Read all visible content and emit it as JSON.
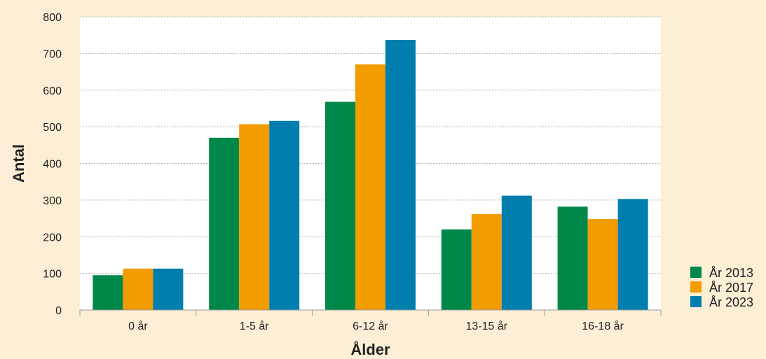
{
  "chart_data": {
    "type": "bar",
    "title": "",
    "xlabel": "Ålder",
    "ylabel": "Antal",
    "categories": [
      "0 år",
      "1-5 år",
      "6-12 år",
      "13-15 år",
      "16-18 år"
    ],
    "series": [
      {
        "name": "År 2013",
        "color": "#00874a",
        "values": [
          95,
          470,
          568,
          220,
          282
        ]
      },
      {
        "name": "År 2017",
        "color": "#f39c00",
        "values": [
          113,
          507,
          670,
          262,
          248
        ]
      },
      {
        "name": "År 2023",
        "color": "#007fae",
        "values": [
          113,
          516,
          737,
          312,
          303
        ]
      }
    ],
    "ylim": [
      0,
      800
    ],
    "yticks": [
      0,
      100,
      200,
      300,
      400,
      500,
      600,
      700,
      800
    ],
    "grid": true,
    "legend_position": "bottom-right",
    "colors": {
      "background": "#fdeed6",
      "plot_background": "#ffffff",
      "grid": "#b0b0b0"
    }
  }
}
